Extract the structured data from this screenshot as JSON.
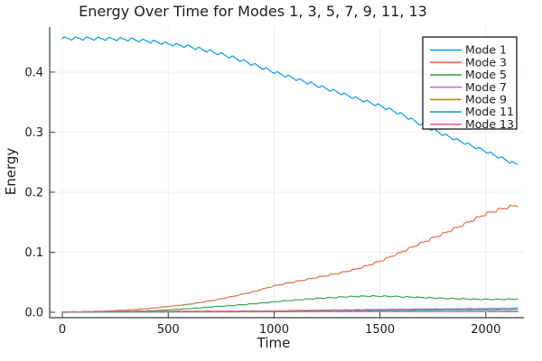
{
  "chart_data": {
    "type": "line",
    "title": "Energy Over Time for Modes 1, 3, 5, 7, 9, 11, 13",
    "xlabel": "Time",
    "ylabel": "Energy",
    "xlim": [
      -60,
      2180
    ],
    "ylim": [
      -0.009,
      0.475
    ],
    "xticks": [
      0,
      500,
      1000,
      1500,
      2000
    ],
    "xtick_labels": [
      "0",
      "500",
      "1000",
      "1500",
      "2000"
    ],
    "yticks": [
      0.0,
      0.1,
      0.2,
      0.3,
      0.4
    ],
    "ytick_labels": [
      "0.0",
      "0.1",
      "0.2",
      "0.3",
      "0.4"
    ],
    "grid": true,
    "legend_position": "top-right",
    "theme": {
      "background": "#ffffff",
      "grid_color": "#ececec",
      "axis_color": "#37393b",
      "text_color": "#1c1c1e",
      "legend_border": "#1a1a1a",
      "legend_background": "#ffffff"
    },
    "series": [
      {
        "name": "Mode 1",
        "color": "#009AFA",
        "t": [
          0,
          100,
          200,
          300,
          400,
          500,
          600,
          700,
          800,
          900,
          1000,
          1100,
          1200,
          1300,
          1400,
          1500,
          1600,
          1700,
          1800,
          1900,
          2000,
          2075,
          2150
        ],
        "E": [
          0.456,
          0.456,
          0.4556,
          0.4548,
          0.452,
          0.447,
          0.4425,
          0.4345,
          0.425,
          0.413,
          0.4,
          0.389,
          0.378,
          0.3665,
          0.355,
          0.344,
          0.33,
          0.312,
          0.296,
          0.282,
          0.268,
          0.2565,
          0.2455
        ],
        "ripple": {
          "amp0": 0.002,
          "amp1": 0.002,
          "period": 53,
          "saw": 0.35,
          "phase": 0
        }
      },
      {
        "name": "Mode 3",
        "color": "#E36F47",
        "t": [
          0,
          100,
          200,
          300,
          400,
          500,
          600,
          700,
          800,
          900,
          1000,
          1100,
          1200,
          1300,
          1400,
          1500,
          1600,
          1700,
          1800,
          1900,
          2000,
          2075,
          2150
        ],
        "E": [
          0.0005,
          0.001,
          0.002,
          0.0035,
          0.006,
          0.0095,
          0.0135,
          0.019,
          0.026,
          0.034,
          0.044,
          0.051,
          0.058,
          0.0645,
          0.073,
          0.085,
          0.1,
          0.116,
          0.131,
          0.147,
          0.164,
          0.172,
          0.179
        ],
        "ripple": {
          "amp0": 0.0003,
          "amp1": 0.015,
          "period": 53,
          "saw": 0.55,
          "phase": 1.5
        }
      },
      {
        "name": "Mode 5",
        "color": "#3EA44E",
        "t": [
          0,
          150,
          300,
          450,
          600,
          750,
          900,
          1050,
          1200,
          1350,
          1450,
          1550,
          1700,
          1850,
          2000,
          2075,
          2150
        ],
        "E": [
          0.0,
          0.0005,
          0.0015,
          0.003,
          0.006,
          0.01,
          0.014,
          0.019,
          0.023,
          0.026,
          0.027,
          0.0265,
          0.0245,
          0.0225,
          0.0215,
          0.0215,
          0.022
        ],
        "ripple": {
          "amp0": 0.0002,
          "amp1": 0.03,
          "period": 53,
          "saw": 0.4,
          "phase": 3
        }
      },
      {
        "name": "Mode 7",
        "color": "#C371D2",
        "t": [
          0,
          300,
          600,
          900,
          1200,
          1500,
          1800,
          2000,
          2150
        ],
        "E": [
          0.0003,
          0.0005,
          0.001,
          0.002,
          0.0035,
          0.0048,
          0.0058,
          0.0062,
          0.0068
        ],
        "ripple": {
          "amp0": 0.00012,
          "amp1": 0.01,
          "period": 53,
          "saw": 0,
          "phase": 0
        }
      },
      {
        "name": "Mode 9",
        "color": "#AC8E18",
        "t": [
          0,
          500,
          1000,
          1500,
          2000,
          2150
        ],
        "E": [
          0.0002,
          0.0005,
          0.0009,
          0.0013,
          0.0016,
          0.0018
        ],
        "ripple": {
          "amp0": 0.0001,
          "amp1": 0,
          "period": 53,
          "saw": 0,
          "phase": 0
        }
      },
      {
        "name": "Mode 11",
        "color": "#00AAAE",
        "t": [
          0,
          500,
          1000,
          1500,
          1800,
          2150
        ],
        "E": [
          0.0002,
          0.0008,
          0.0018,
          0.003,
          0.004,
          0.0048
        ],
        "ripple": {
          "amp0": 0.0001,
          "amp1": 0.01,
          "period": 53,
          "saw": 0,
          "phase": 0
        }
      },
      {
        "name": "Mode 13",
        "color": "#ED5E93",
        "t": [
          0,
          300,
          600,
          1000,
          1500,
          2150
        ],
        "E": [
          0.0005,
          0.0015,
          0.0018,
          0.002,
          0.0015,
          0.001
        ],
        "ripple": {
          "amp0": 0.00012,
          "amp1": 0.01,
          "period": 53,
          "saw": 0,
          "phase": 2
        }
      }
    ],
    "t_end": 2150
  }
}
